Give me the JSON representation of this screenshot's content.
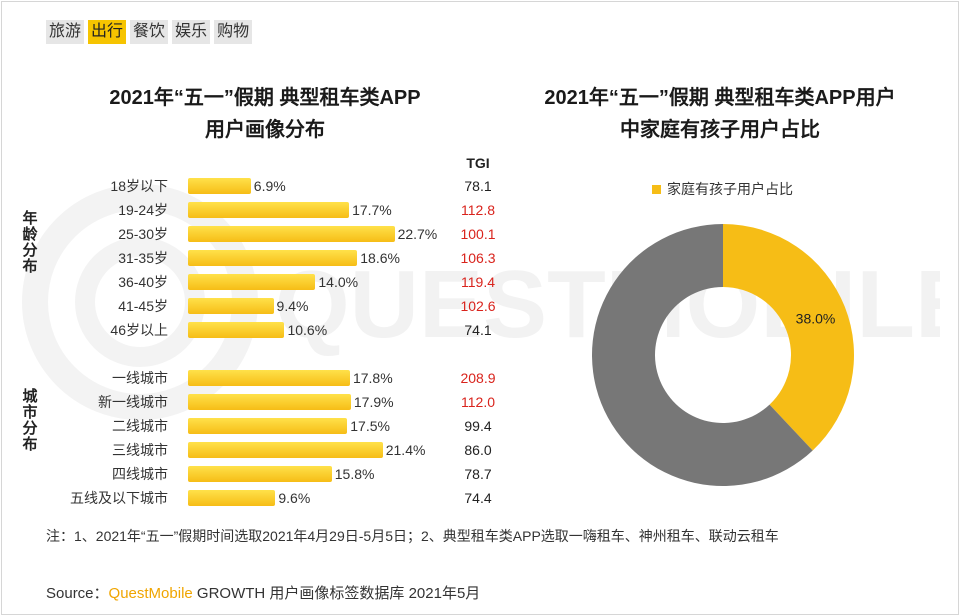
{
  "tabs": [
    {
      "label": "旅游",
      "active": false
    },
    {
      "label": "出行",
      "active": true
    },
    {
      "label": "餐饮",
      "active": false
    },
    {
      "label": "娱乐",
      "active": false
    },
    {
      "label": "购物",
      "active": false
    }
  ],
  "watermark": "QUESTMOBILE",
  "chart_data": [
    {
      "type": "bar",
      "title": "2021年“五一”假期 典型租车类APP用户画像分布",
      "title_lines": [
        "2021年“五一”假期 典型租车类APP",
        "用户画像分布"
      ],
      "tgi_header": "TGI",
      "groups": [
        {
          "name": "年龄分布",
          "categories": [
            "18岁以下",
            "19-24岁",
            "25-30岁",
            "31-35岁",
            "36-40岁",
            "41-45岁",
            "46岁以上"
          ],
          "values": [
            6.9,
            17.7,
            22.7,
            18.6,
            14.0,
            9.4,
            10.6
          ],
          "value_labels": [
            "6.9%",
            "17.7%",
            "22.7%",
            "18.6%",
            "14.0%",
            "9.4%",
            "10.6%"
          ],
          "tgi": [
            "78.1",
            "112.8",
            "100.1",
            "106.3",
            "119.4",
            "102.6",
            "74.1"
          ]
        },
        {
          "name": "城市分布",
          "categories": [
            "一线城市",
            "新一线城市",
            "二线城市",
            "三线城市",
            "四线城市",
            "五线及以下城市"
          ],
          "values": [
            17.8,
            17.9,
            17.5,
            21.4,
            15.8,
            9.6
          ],
          "value_labels": [
            "17.8%",
            "17.9%",
            "17.5%",
            "21.4%",
            "15.8%",
            "9.6%"
          ],
          "tgi": [
            "208.9",
            "112.0",
            "99.4",
            "86.0",
            "78.7",
            "74.4"
          ]
        }
      ],
      "tgi_highlight_threshold": 100,
      "colors": {
        "bar": "#f6bd16",
        "tgi_high": "#d9231c",
        "tgi_normal": "#222222"
      }
    },
    {
      "type": "pie",
      "title": "2021年“五一”假期 典型租车类APP用户中家庭有孩子用户占比",
      "title_lines": [
        "2021年“五一”假期 典型租车类APP用户",
        "中家庭有孩子用户占比"
      ],
      "legend": [
        "家庭有孩子用户占比"
      ],
      "legend_position": "top",
      "slices": [
        {
          "label": "家庭有孩子用户占比",
          "value": 38.0,
          "value_label": "38.0%",
          "color": "#f6bd16"
        },
        {
          "label": "",
          "value": 62.0,
          "color": "#777777"
        }
      ]
    }
  ],
  "note": "注：1、2021年“五一”假期时间选取2021年4月29日-5月5日；2、典型租车类APP选取一嗨租车、神州租车、联动云租车",
  "source": {
    "prefix": "Source：",
    "brand": "QuestMobile",
    "suffix": "GROWTH 用户画像标签数据库 2021年5月"
  }
}
